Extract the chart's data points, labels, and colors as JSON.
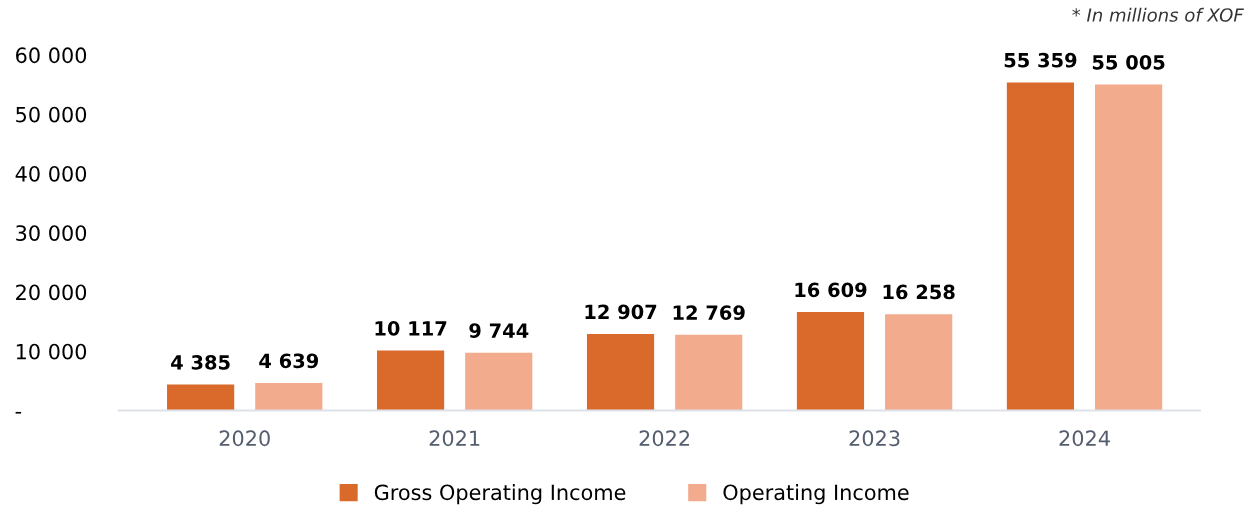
{
  "chart_data": {
    "type": "bar",
    "categories": [
      "2020",
      "2021",
      "2022",
      "2023",
      "2024"
    ],
    "series": [
      {
        "name": "Gross Operating Income",
        "color": "#d96a2b",
        "values": [
          4385,
          10117,
          12907,
          16609,
          55359
        ],
        "value_labels": [
          "4 385",
          "10 117",
          "12 907",
          "16 609",
          "55 359"
        ]
      },
      {
        "name": "Operating Income",
        "color": "#f2ab8d",
        "values": [
          4639,
          9744,
          12769,
          16258,
          55005
        ],
        "value_labels": [
          "4 639",
          "9 744",
          "12 769",
          "16 258",
          "55 005"
        ]
      }
    ],
    "ylim": [
      0,
      60000
    ],
    "yticks": [
      {
        "value": 0,
        "label": "-"
      },
      {
        "value": 10000,
        "label": "10 000"
      },
      {
        "value": 20000,
        "label": "20 000"
      },
      {
        "value": 30000,
        "label": "30 000"
      },
      {
        "value": 40000,
        "label": "40 000"
      },
      {
        "value": 50000,
        "label": "50 000"
      },
      {
        "value": 60000,
        "label": "60 000"
      }
    ],
    "annotations": [
      "* In millions of XOF"
    ],
    "grid": false,
    "legend": "bottom"
  }
}
